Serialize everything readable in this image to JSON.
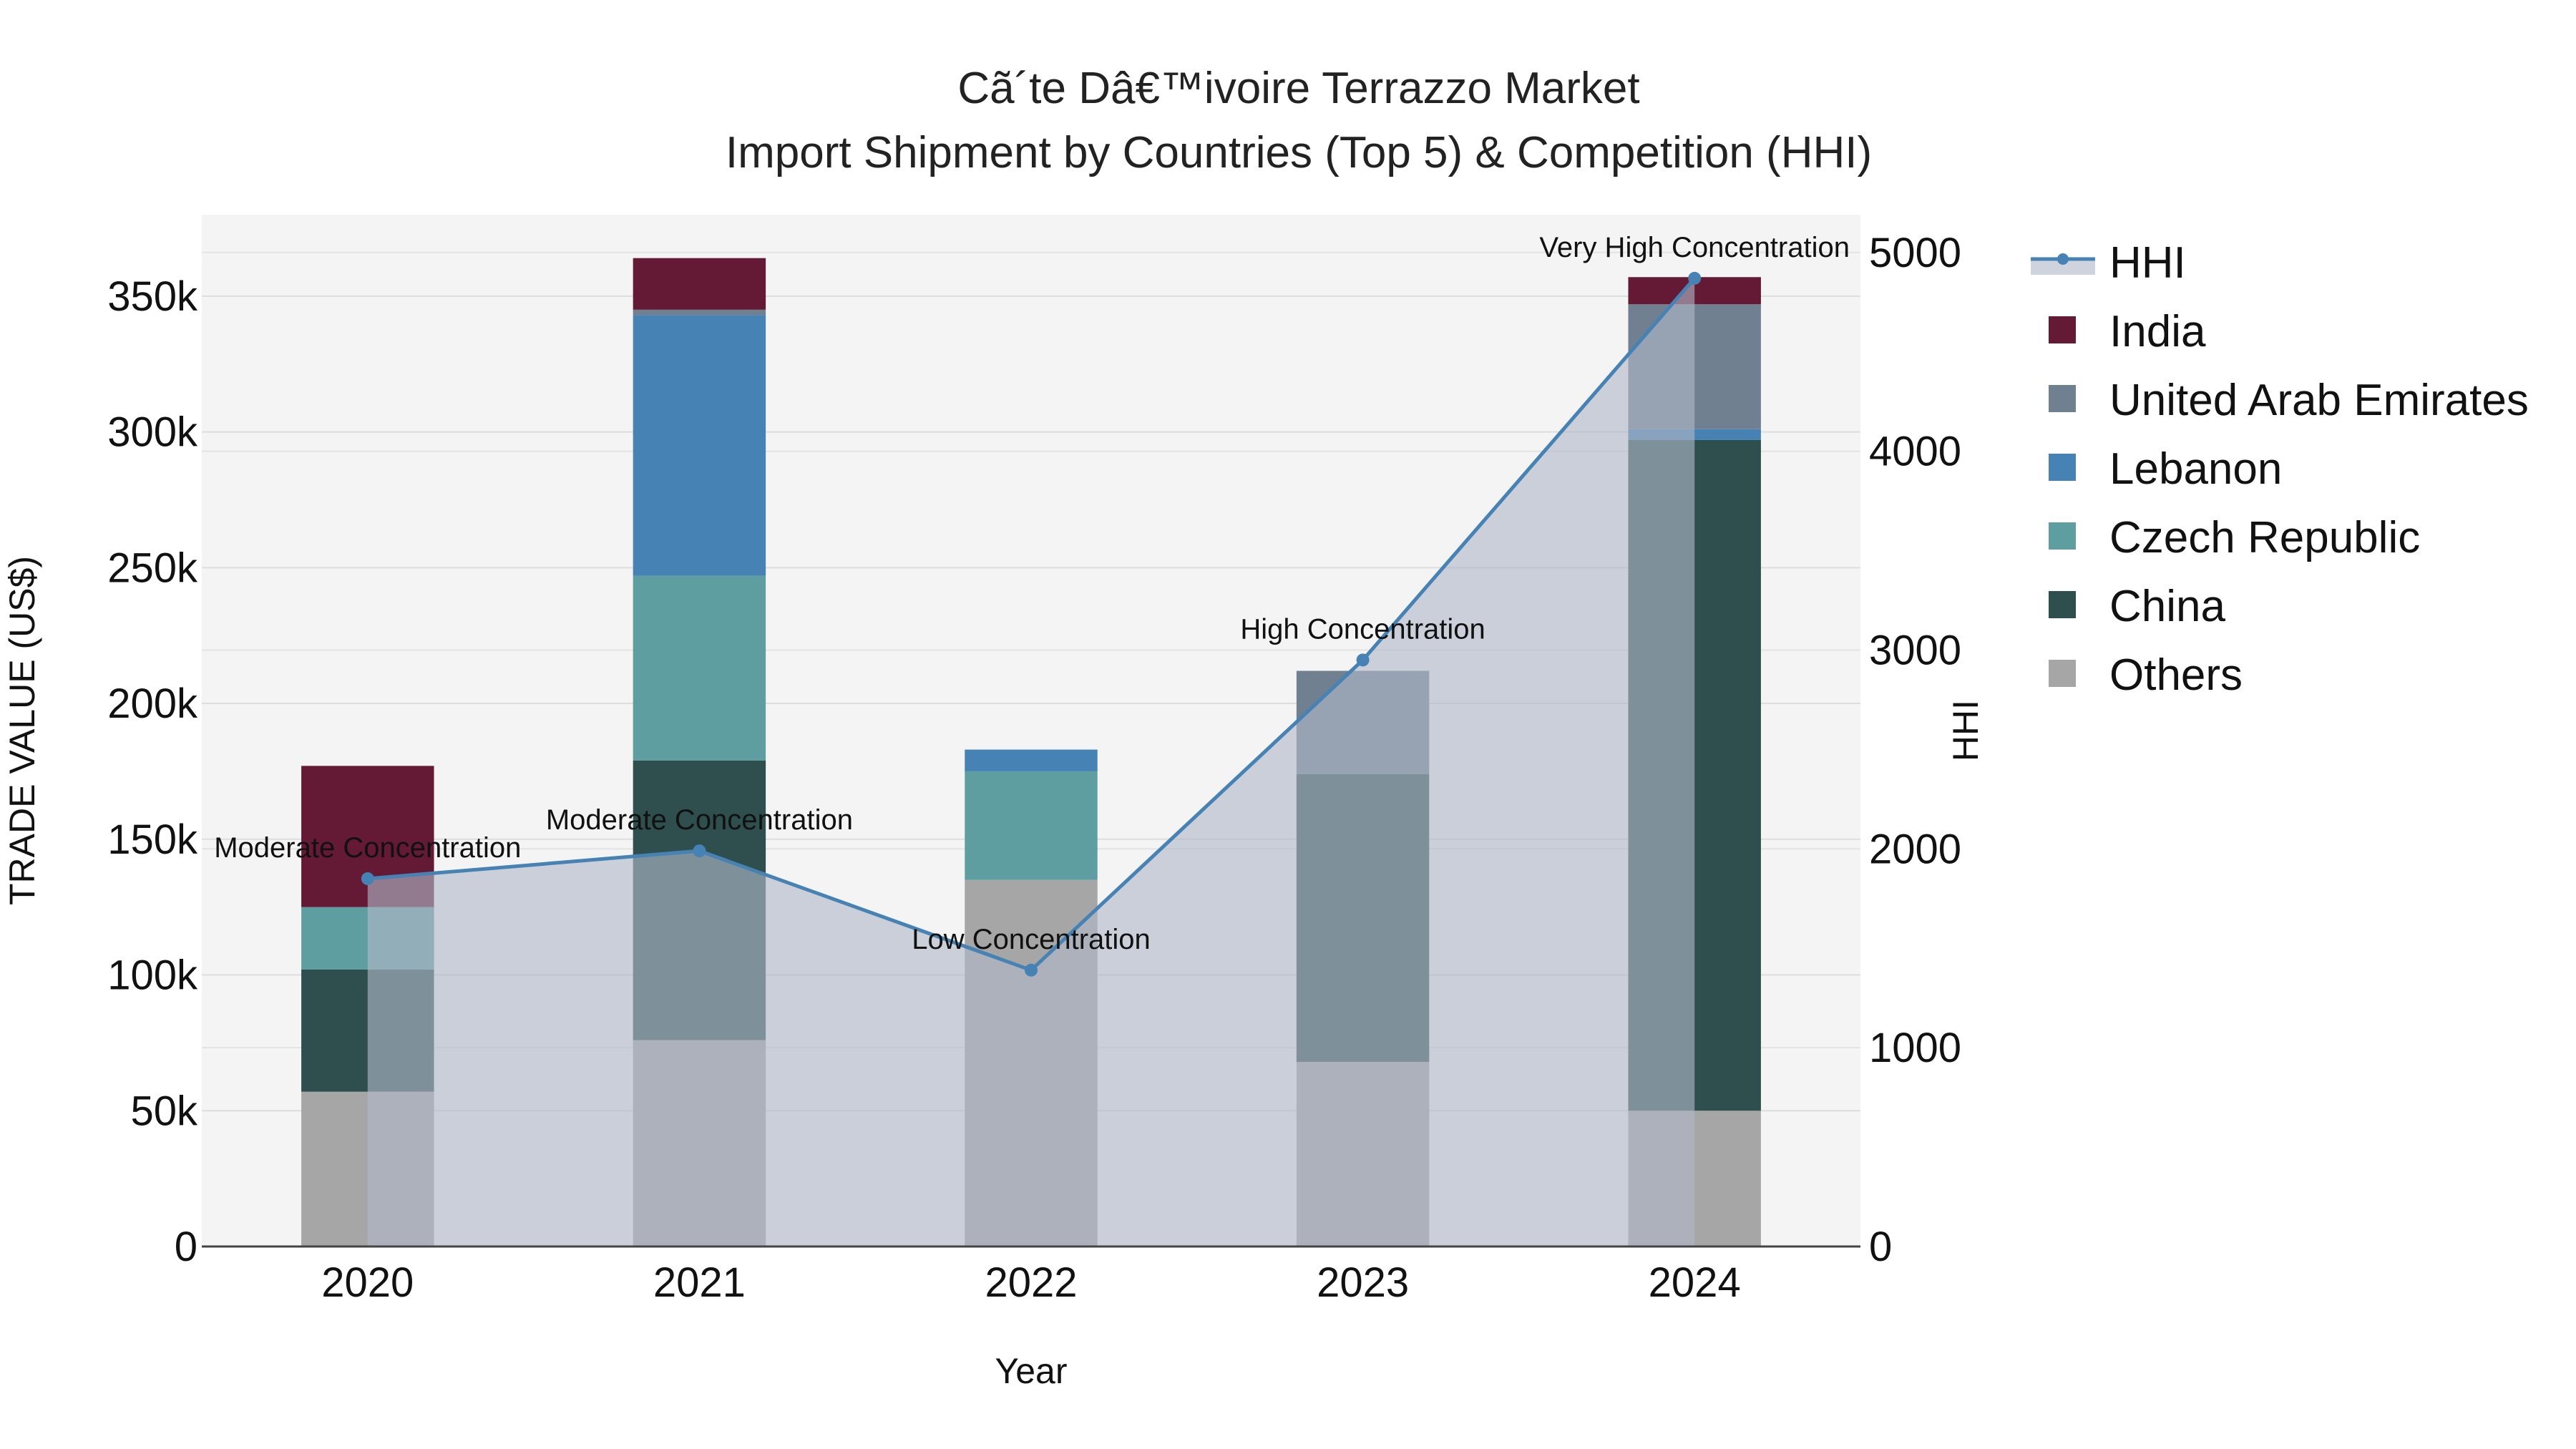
{
  "chart_data": {
    "type": "bar",
    "title_line1": "Cã´te Dâ€™ivoire Terrazzo Market",
    "title_line2": "Import Shipment by Countries (Top 5) & Competition (HHI)",
    "xlabel": "Year",
    "ylabel": "TRADE VALUE (US$)",
    "y2label": "HHI",
    "categories": [
      "2020",
      "2021",
      "2022",
      "2023",
      "2024"
    ],
    "ylim": [
      0,
      380000
    ],
    "y_ticks": [
      0,
      50000,
      100000,
      150000,
      200000,
      250000,
      300000,
      350000
    ],
    "y_tick_labels": [
      "0",
      "50k",
      "100k",
      "150k",
      "200k",
      "250k",
      "300k",
      "350k"
    ],
    "y2lim": [
      0,
      5190
    ],
    "y2_ticks": [
      0,
      1000,
      2000,
      3000,
      4000,
      5000
    ],
    "y2_tick_labels": [
      "0",
      "1000",
      "2000",
      "3000",
      "4000",
      "5000"
    ],
    "series": [
      {
        "name": "Others",
        "color": "#a6a6a6",
        "values": [
          57000,
          76000,
          135000,
          68000,
          50000
        ]
      },
      {
        "name": "China",
        "color": "#2f4f4f",
        "values": [
          45000,
          103000,
          0,
          106000,
          247000
        ]
      },
      {
        "name": "Czech Republic",
        "color": "#5f9ea0",
        "values": [
          23000,
          68000,
          40000,
          0,
          0
        ]
      },
      {
        "name": "Lebanon",
        "color": "#4682b4",
        "values": [
          0,
          96000,
          8000,
          0,
          4000
        ]
      },
      {
        "name": "United Arab Emirates",
        "color": "#708090",
        "values": [
          0,
          2000,
          0,
          38000,
          46000
        ]
      },
      {
        "name": "India",
        "color": "#641934",
        "values": [
          52000,
          19000,
          0,
          0,
          10000
        ]
      }
    ],
    "hhi": {
      "name": "HHI",
      "color": "#4682b4",
      "fill": "rgba(176,184,200,0.62)",
      "values": [
        1850,
        1990,
        1390,
        2950,
        4870
      ],
      "labels": [
        "Moderate Concentration",
        "Moderate Concentration",
        "Low Concentration",
        "High Concentration",
        "Very High Concentration"
      ]
    },
    "legend_order": [
      "HHI",
      "India",
      "United Arab Emirates",
      "Lebanon",
      "Czech Republic",
      "China",
      "Others"
    ],
    "legend_position": "right"
  }
}
